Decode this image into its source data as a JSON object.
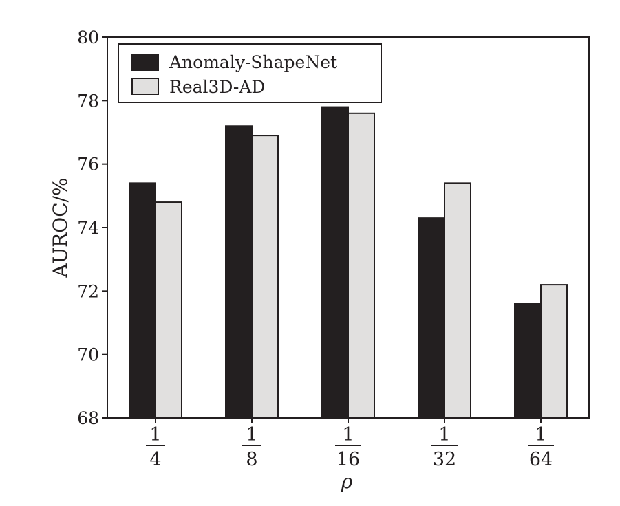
{
  "chart_data": {
    "type": "bar",
    "title": "",
    "xlabel": "ρ",
    "ylabel": "AUROC/%",
    "ylim": [
      68,
      80
    ],
    "yticks": [
      68,
      70,
      72,
      74,
      76,
      78,
      80
    ],
    "ytick_labels": [
      "68",
      "70",
      "72",
      "74",
      "76",
      "78",
      "80"
    ],
    "grid": false,
    "legend_position": "top-left",
    "categories": [
      {
        "num": "1",
        "den": "4"
      },
      {
        "num": "1",
        "den": "8"
      },
      {
        "num": "1",
        "den": "16"
      },
      {
        "num": "1",
        "den": "32"
      },
      {
        "num": "1",
        "den": "64"
      }
    ],
    "series": [
      {
        "name": "Anomaly-ShapeNet",
        "color": "#231f20",
        "values": [
          75.4,
          77.2,
          77.8,
          74.3,
          71.6
        ]
      },
      {
        "name": "Real3D-AD",
        "color": "#e1e0df",
        "values": [
          74.8,
          76.9,
          77.6,
          75.4,
          72.2
        ]
      }
    ]
  }
}
